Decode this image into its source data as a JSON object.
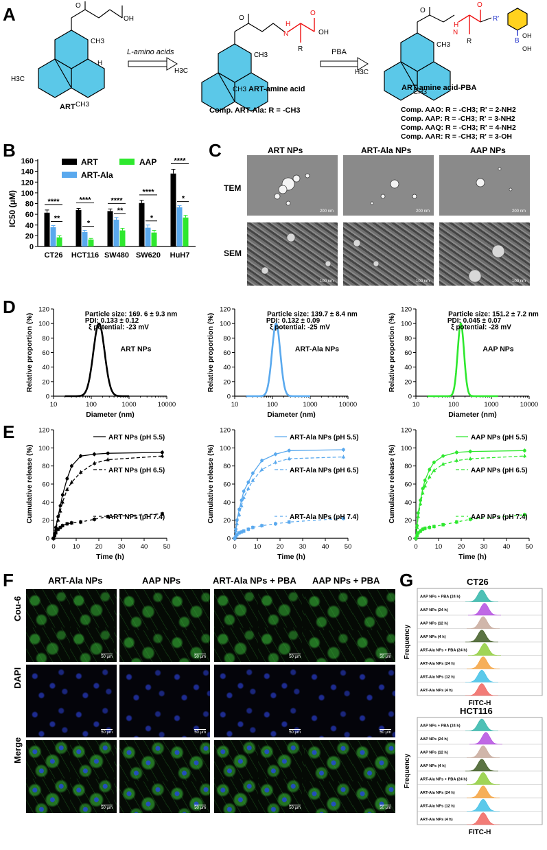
{
  "panels": {
    "A": "A",
    "B": "B",
    "C": "C",
    "D": "D",
    "E": "E",
    "F": "F",
    "G": "G"
  },
  "panelA": {
    "reagent1": "L-amino acids",
    "reagent2": "PBA",
    "mol1_label": "ART",
    "mol2_label": "ART-amine acid",
    "mol3_label": "ART-amine acid-PBA",
    "comp_ala": "Comp. ART-Ala: R = -CH3",
    "comp_list": [
      "Comp. AAO: R = -CH3; R' = 2-NH2",
      "Comp. AAP: R = -CH3; R' = 3-NH2",
      "Comp. AAQ: R = -CH3; R' = 4-NH2",
      "Comp. AAR: R = -CH3; R' = 3-OH"
    ],
    "atoms": {
      "oh": "OH",
      "o": "O",
      "h": "H",
      "ch3": "CH3",
      "h3c": "H3C",
      "n_h": "H",
      "n": "N",
      "r": "R",
      "r_prime": "R'",
      "b": "B",
      "oh_b": "OH"
    },
    "colors": {
      "ring": "#5bc8e8",
      "amino": "#ee1111",
      "pba": "#ffd21e",
      "boron": "#2233cc"
    }
  },
  "panelB": {
    "ylabel": "IC50 (μM)",
    "legend": [
      "ART",
      "AAP",
      "ART-Ala"
    ],
    "significance": [
      {
        "cat": 0,
        "top": "****",
        "low": "**"
      },
      {
        "cat": 1,
        "top": "****",
        "low": "*"
      },
      {
        "cat": 2,
        "top": "****",
        "low": "**"
      },
      {
        "cat": 3,
        "top": "****",
        "low": "*"
      },
      {
        "cat": 4,
        "top": "****",
        "low": "*"
      }
    ]
  },
  "panelC": {
    "cols": [
      "ART NPs",
      "ART-Ala NPs",
      "AAP NPs"
    ],
    "rows": [
      "TEM",
      "SEM"
    ],
    "tem_scale": "200 nm",
    "sem_scale": "100 nm"
  },
  "panelD": {
    "xlabel": "Diameter (nm)",
    "ylabel": "Relative proportion (%)",
    "items": [
      {
        "name": "ART NPs",
        "size": "Particle size: 169. 6 ± 9.3 nm",
        "pdi": "PDI: 0.133 ± 0.12",
        "zeta": "ξ potential: -23 mV"
      },
      {
        "name": "ART-Ala NPs",
        "size": "Particle size: 139.7 ± 8.4 nm",
        "pdi": "PDI: 0.132 ± 0.09",
        "zeta": "ξ potential: -25 mV"
      },
      {
        "name": "AAP NPs",
        "size": "Particle size: 151.2 ± 7.2 nm",
        "pdi": "PDI: 0.045 ± 0.07",
        "zeta": "ξ potential: -28 mV"
      }
    ]
  },
  "panelE": {
    "xlabel": "Time (h)",
    "ylabel": "Cumulative release (%)",
    "legends": [
      [
        "ART NPs (pH 5.5)",
        "ART NPs (pH 6.5)",
        "ART NPs (pH 7.4)"
      ],
      [
        "ART-Ala NPs (pH 5.5)",
        "ART-Ala NPs (pH 6.5)",
        "ART-Ala NPs (pH 7.4)"
      ],
      [
        "AAP NPs (pH 5.5)",
        "AAP NPs (pH 6.5)",
        "AAP NPs (pH 7.4)"
      ]
    ]
  },
  "panelF": {
    "cols": [
      "ART-Ala NPs",
      "AAP NPs",
      "ART-Ala NPs + PBA",
      "AAP NPs + PBA"
    ],
    "rows": [
      "Cou-6",
      "DAPI",
      "Merge"
    ],
    "scale": "50 μm"
  },
  "panelG": {
    "titles": [
      "CT26",
      "HCT116"
    ],
    "ylabel": "Frequency",
    "xlabel": "FITC-H",
    "tracks": [
      {
        "label": "AAP NPs + PBA (24 h)",
        "color": "#2fb5a8"
      },
      {
        "label": "AAP NPs (24 h)",
        "color": "#b44fe0"
      },
      {
        "label": "AAP NPs (12 h)",
        "color": "#c8a99b"
      },
      {
        "label": "AAP NPs (4 h)",
        "color": "#3e5a22"
      },
      {
        "label": "ART-Ala NPs + PBA (24 h)",
        "color": "#8fce3a"
      },
      {
        "label": "ART-Ala NPs (24 h)",
        "color": "#f4a13c"
      },
      {
        "label": "ART-Ala NPs (12 h)",
        "color": "#3fc0e6"
      },
      {
        "label": "ART-Ala NPs (4 h)",
        "color": "#f0655f"
      }
    ]
  },
  "chart_data": [
    {
      "type": "bar",
      "panel": "B",
      "categories": [
        "CT26",
        "HCT116",
        "SW480",
        "SW620",
        "HuH7"
      ],
      "series": [
        {
          "name": "ART",
          "values": [
            63,
            68,
            66,
            81,
            136
          ],
          "color": "#000000"
        },
        {
          "name": "ART-Ala",
          "values": [
            36,
            27,
            50,
            35,
            73
          ],
          "color": "#5aa9ee"
        },
        {
          "name": "AAP",
          "values": [
            17,
            13,
            30,
            26,
            54
          ],
          "color": "#2ee82e"
        }
      ],
      "errors": [
        [
          5,
          3,
          4,
          5,
          8
        ],
        [
          3,
          3,
          4,
          5,
          3
        ],
        [
          3,
          2,
          4,
          4,
          4
        ]
      ],
      "ylabel": "IC50 (μM)",
      "ylim": [
        0,
        160
      ],
      "yticks": [
        0,
        20,
        40,
        60,
        80,
        100,
        120,
        140,
        160
      ]
    },
    {
      "type": "line",
      "panel": "D",
      "xscale": "log",
      "xlim": [
        10,
        10000
      ],
      "xticks": [
        10,
        100,
        1000,
        10000
      ],
      "ylim": [
        0,
        120
      ],
      "yticks": [
        0,
        20,
        40,
        60,
        80,
        100,
        120
      ],
      "series": [
        {
          "name": "ART NPs",
          "peak": 160,
          "logwidth": 0.15,
          "range": [
            20,
            1000
          ],
          "color": "#000000"
        },
        {
          "name": "ART-Ala NPs",
          "peak": 125,
          "logwidth": 0.11,
          "range": [
            20,
            1000
          ],
          "color": "#5aa9ee"
        },
        {
          "name": "AAP NPs",
          "peak": 155,
          "logwidth": 0.085,
          "range": [
            20,
            1500
          ],
          "color": "#2ee82e"
        }
      ]
    },
    {
      "type": "line",
      "panel": "E",
      "x": [
        0,
        0.5,
        1,
        2,
        3,
        4,
        6,
        8,
        12,
        18,
        24,
        48
      ],
      "xlim": [
        0,
        50
      ],
      "xticks": [
        0,
        10,
        20,
        30,
        40,
        50
      ],
      "ylim": [
        0,
        120
      ],
      "yticks": [
        0,
        20,
        40,
        60,
        80,
        100,
        120
      ],
      "groups": [
        {
          "color": "#000000",
          "series": [
            {
              "name": "ART NPs (pH 5.5)",
              "values": [
                0,
                5,
                12,
                24,
                36,
                48,
                66,
                80,
                91,
                93,
                94,
                95
              ]
            },
            {
              "name": "ART NPs (pH 6.5)",
              "values": [
                0,
                4,
                10,
                20,
                30,
                40,
                54,
                62,
                73,
                83,
                87,
                91
              ]
            },
            {
              "name": "ART NPs (pH 7.4)",
              "values": [
                0,
                3,
                6,
                10,
                12,
                14,
                16,
                17,
                18,
                21,
                24,
                27
              ]
            }
          ]
        },
        {
          "color": "#5aa9ee",
          "series": [
            {
              "name": "ART-Ala NPs (pH 5.5)",
              "values": [
                0,
                10,
                20,
                32,
                42,
                52,
                62,
                72,
                86,
                93,
                97,
                98
              ]
            },
            {
              "name": "ART-Ala NPs (pH 6.5)",
              "values": [
                0,
                8,
                16,
                26,
                36,
                45,
                55,
                64,
                76,
                84,
                88,
                90
              ]
            },
            {
              "name": "ART-Ala NPs (pH 7.4)",
              "values": [
                0,
                2,
                4,
                6,
                7,
                8,
                10,
                12,
                14,
                16,
                18,
                22
              ]
            }
          ]
        },
        {
          "color": "#2ee82e",
          "series": [
            {
              "name": "AAP NPs (pH 5.5)",
              "values": [
                0,
                14,
                28,
                42,
                55,
                64,
                76,
                84,
                91,
                95,
                96,
                97
              ]
            },
            {
              "name": "AAP NPs (pH 6.5)",
              "values": [
                0,
                12,
                24,
                38,
                50,
                58,
                68,
                75,
                82,
                86,
                88,
                91
              ]
            },
            {
              "name": "AAP NPs (pH 7.4)",
              "values": [
                0,
                3,
                6,
                8,
                10,
                11,
                12,
                13,
                15,
                18,
                21,
                26
              ]
            }
          ]
        }
      ]
    }
  ]
}
